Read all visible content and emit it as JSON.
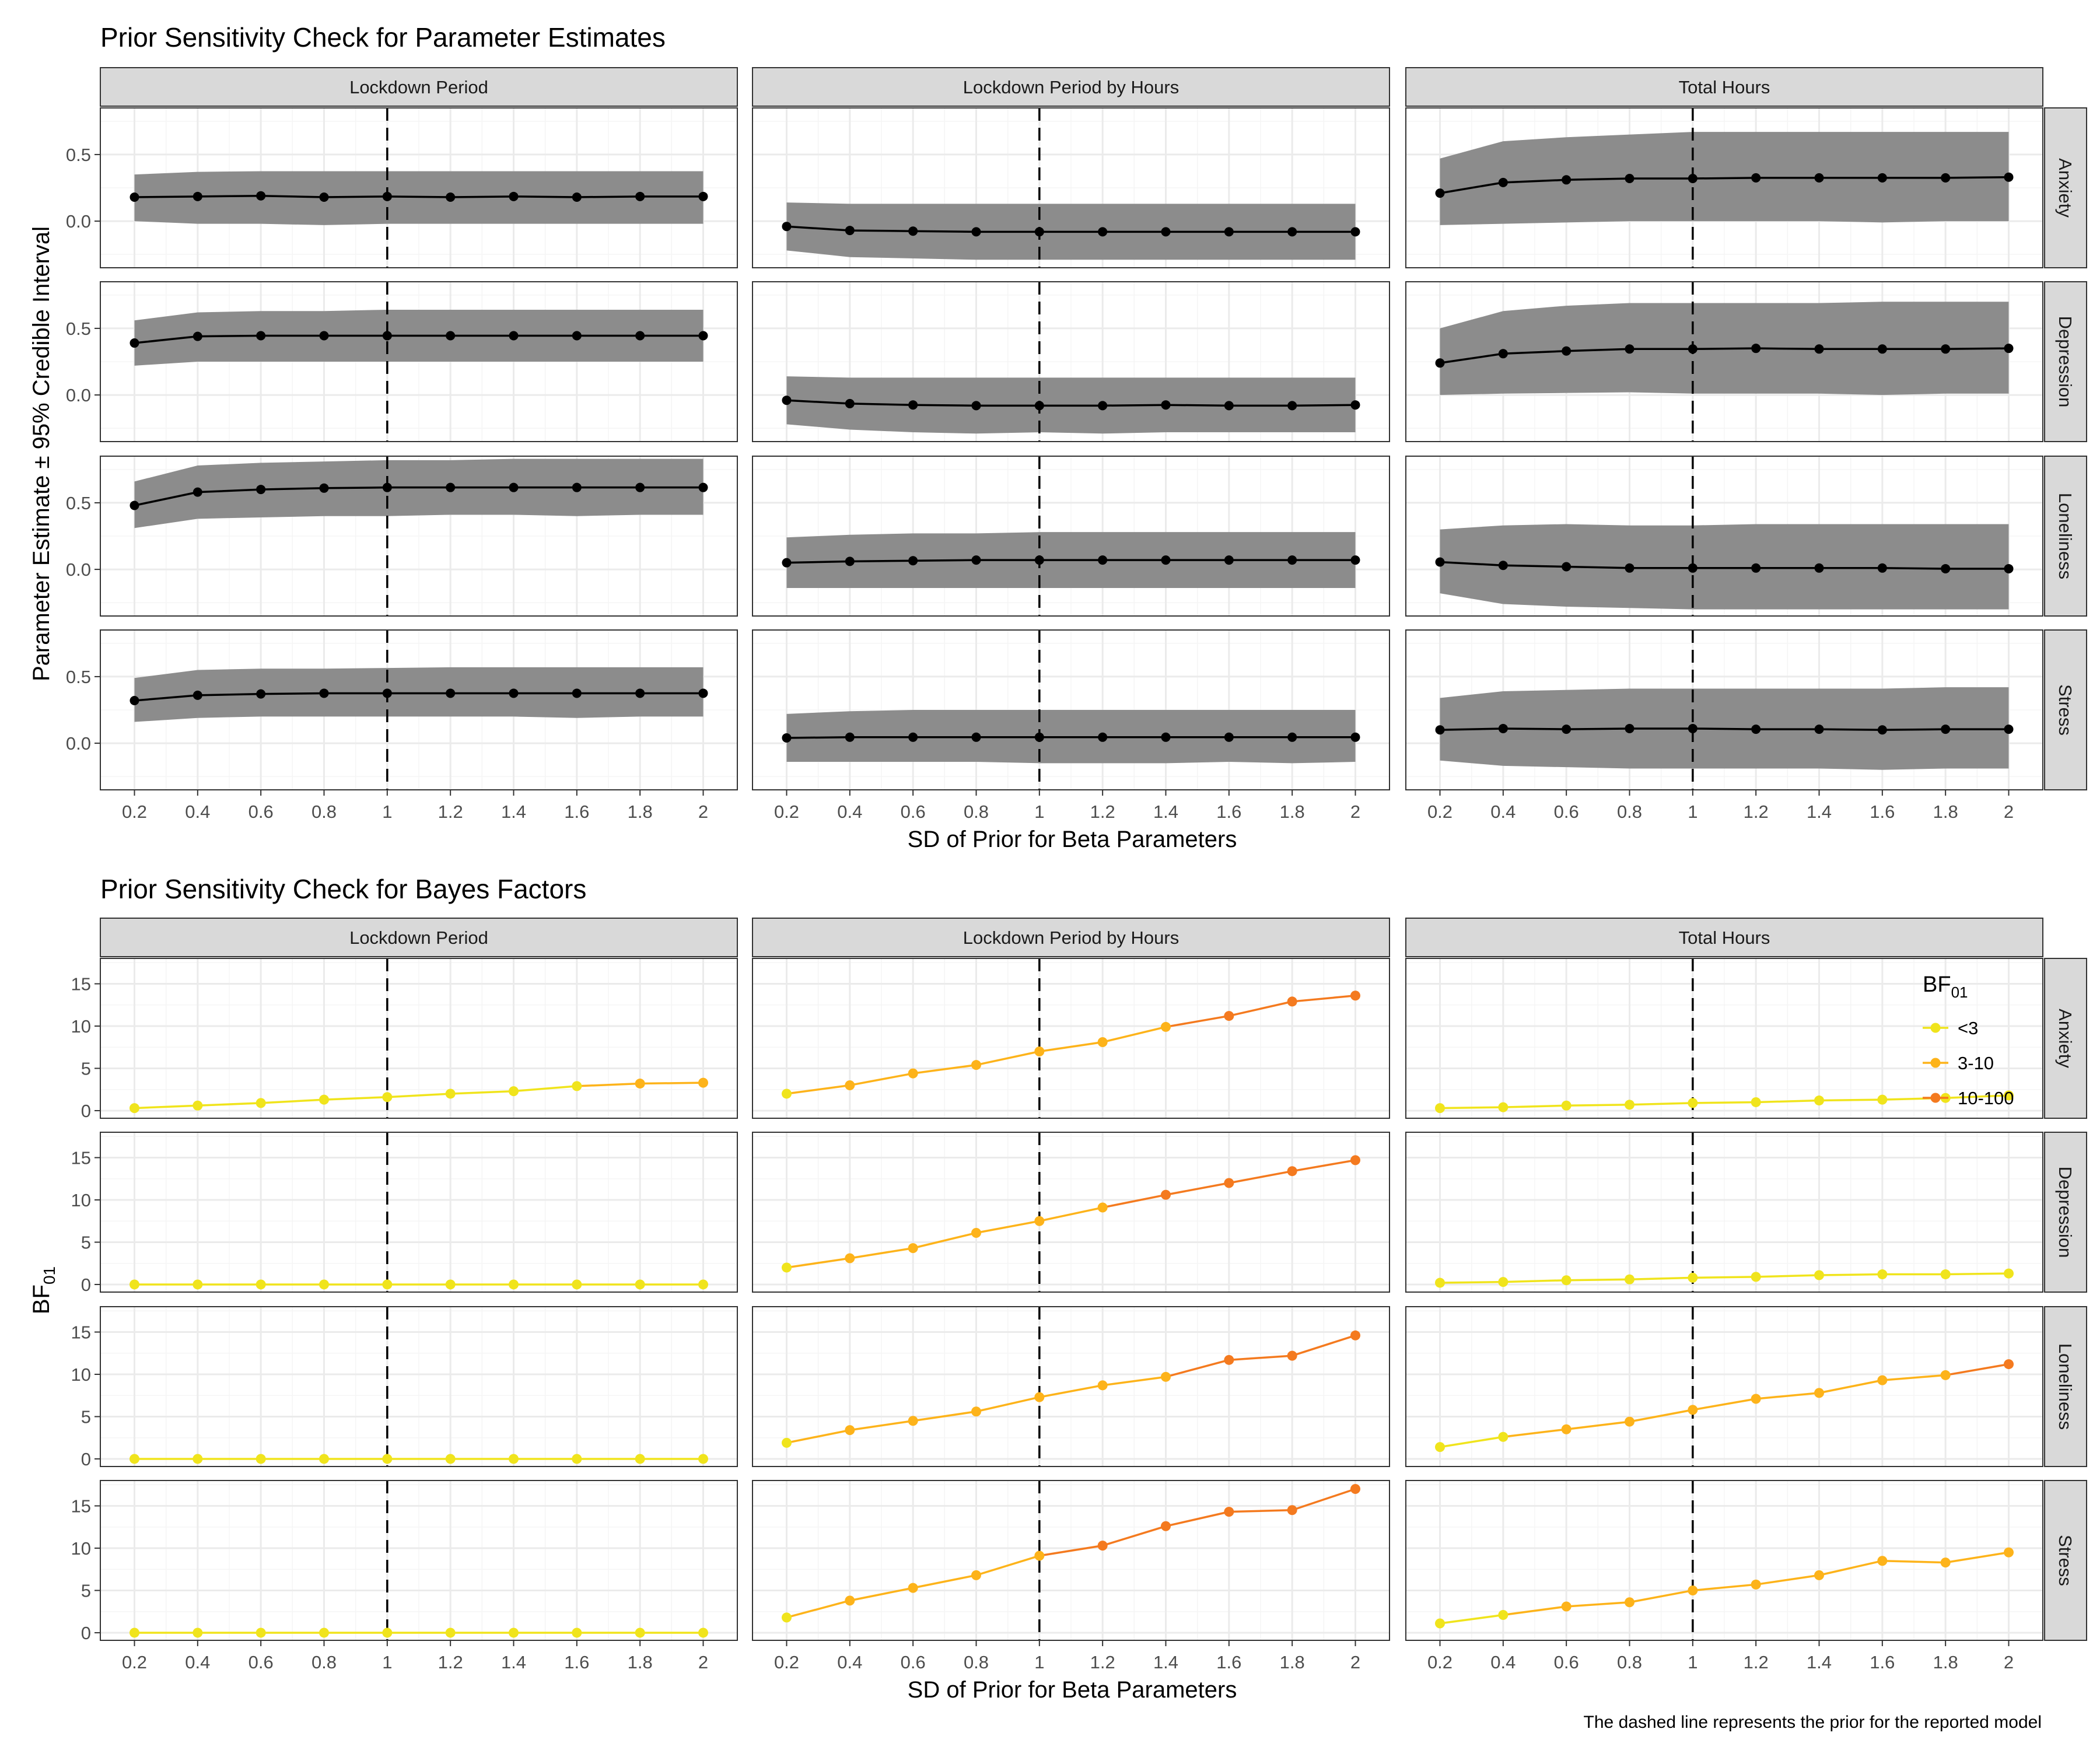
{
  "colors": {
    "panel_border": "#333333",
    "strip_fill": "#d9d9d9",
    "grid_major": "#ebebeb",
    "grid_minor": "#f5f5f5",
    "ribbon": "#8c8c8c",
    "line_points": "#000000",
    "bf_lt3": "#f0e41c",
    "bf_3_10": "#fdb31a",
    "bf_10_100": "#f47a1f"
  },
  "caption": "The dashed line represents the prior for the reported model",
  "chart_data": [
    {
      "type": "line",
      "title": "Prior Sensitivity Check for Parameter Estimates",
      "xlabel": "SD of Prior for Beta Parameters",
      "ylabel": "Parameter Estimate ± 95% Credible Interval",
      "x": [
        0.2,
        0.4,
        0.6,
        0.8,
        1,
        1.2,
        1.4,
        1.6,
        1.8,
        2
      ],
      "x_tick_labels": [
        "0.2",
        "0.4",
        "0.6",
        "0.8",
        "1",
        "1.2",
        "1.4",
        "1.6",
        "1.8",
        "2"
      ],
      "ylim": [
        -0.35,
        0.85
      ],
      "y_ticks": [
        0.0,
        0.5
      ],
      "y_tick_labels": [
        "0.0",
        "0.5"
      ],
      "reference_x": 1,
      "grid": true,
      "columns": [
        "Lockdown Period",
        "Lockdown Period by Hours",
        "Total Hours"
      ],
      "rows": [
        "Anxiety",
        "Depression",
        "Loneliness",
        "Stress"
      ],
      "panels": [
        [
          {
            "est": [
              0.18,
              0.185,
              0.19,
              0.18,
              0.185,
              0.18,
              0.185,
              0.18,
              0.185,
              0.185
            ],
            "lower": [
              0.0,
              -0.02,
              -0.02,
              -0.03,
              -0.02,
              -0.02,
              -0.02,
              -0.02,
              -0.02,
              -0.02
            ],
            "upper": [
              0.35,
              0.37,
              0.375,
              0.375,
              0.375,
              0.375,
              0.375,
              0.375,
              0.375,
              0.375
            ]
          },
          {
            "est": [
              -0.04,
              -0.07,
              -0.075,
              -0.08,
              -0.08,
              -0.08,
              -0.08,
              -0.08,
              -0.08,
              -0.08
            ],
            "lower": [
              -0.22,
              -0.27,
              -0.28,
              -0.29,
              -0.29,
              -0.29,
              -0.29,
              -0.29,
              -0.29,
              -0.29
            ],
            "upper": [
              0.14,
              0.13,
              0.13,
              0.13,
              0.13,
              0.13,
              0.13,
              0.13,
              0.13,
              0.13
            ]
          },
          {
            "est": [
              0.21,
              0.29,
              0.31,
              0.32,
              0.32,
              0.325,
              0.325,
              0.325,
              0.325,
              0.33
            ],
            "lower": [
              -0.03,
              -0.02,
              -0.01,
              0.0,
              0.0,
              0.0,
              0.0,
              -0.01,
              0.0,
              0.0
            ],
            "upper": [
              0.47,
              0.6,
              0.63,
              0.65,
              0.67,
              0.67,
              0.67,
              0.67,
              0.67,
              0.67
            ]
          }
        ],
        [
          {
            "est": [
              0.39,
              0.44,
              0.445,
              0.445,
              0.445,
              0.445,
              0.445,
              0.445,
              0.445,
              0.445
            ],
            "lower": [
              0.22,
              0.25,
              0.25,
              0.25,
              0.25,
              0.25,
              0.25,
              0.25,
              0.25,
              0.25
            ],
            "upper": [
              0.56,
              0.62,
              0.63,
              0.63,
              0.64,
              0.64,
              0.64,
              0.64,
              0.64,
              0.64
            ]
          },
          {
            "est": [
              -0.04,
              -0.065,
              -0.075,
              -0.08,
              -0.08,
              -0.08,
              -0.075,
              -0.08,
              -0.08,
              -0.075
            ],
            "lower": [
              -0.22,
              -0.26,
              -0.28,
              -0.29,
              -0.28,
              -0.29,
              -0.28,
              -0.28,
              -0.28,
              -0.28
            ],
            "upper": [
              0.14,
              0.13,
              0.13,
              0.13,
              0.13,
              0.13,
              0.13,
              0.13,
              0.13,
              0.13
            ]
          },
          {
            "est": [
              0.24,
              0.31,
              0.33,
              0.345,
              0.345,
              0.35,
              0.345,
              0.345,
              0.345,
              0.35
            ],
            "lower": [
              0.0,
              0.01,
              0.015,
              0.02,
              0.01,
              0.01,
              0.01,
              0.0,
              0.01,
              0.01
            ],
            "upper": [
              0.5,
              0.63,
              0.67,
              0.69,
              0.69,
              0.69,
              0.69,
              0.7,
              0.7,
              0.7
            ]
          }
        ],
        [
          {
            "est": [
              0.48,
              0.58,
              0.6,
              0.61,
              0.615,
              0.615,
              0.615,
              0.615,
              0.615,
              0.615
            ],
            "lower": [
              0.31,
              0.38,
              0.39,
              0.4,
              0.4,
              0.41,
              0.41,
              0.4,
              0.41,
              0.41
            ],
            "upper": [
              0.66,
              0.78,
              0.8,
              0.81,
              0.82,
              0.82,
              0.83,
              0.83,
              0.83,
              0.83
            ]
          },
          {
            "est": [
              0.05,
              0.06,
              0.065,
              0.07,
              0.07,
              0.07,
              0.07,
              0.07,
              0.07,
              0.07
            ],
            "lower": [
              -0.14,
              -0.14,
              -0.14,
              -0.14,
              -0.14,
              -0.14,
              -0.14,
              -0.14,
              -0.14,
              -0.14
            ],
            "upper": [
              0.24,
              0.26,
              0.27,
              0.27,
              0.28,
              0.28,
              0.28,
              0.28,
              0.28,
              0.28
            ]
          },
          {
            "est": [
              0.055,
              0.03,
              0.02,
              0.01,
              0.01,
              0.01,
              0.01,
              0.01,
              0.005,
              0.005
            ],
            "lower": [
              -0.18,
              -0.26,
              -0.28,
              -0.29,
              -0.3,
              -0.3,
              -0.3,
              -0.3,
              -0.3,
              -0.3
            ],
            "upper": [
              0.3,
              0.33,
              0.34,
              0.33,
              0.33,
              0.34,
              0.34,
              0.34,
              0.34,
              0.34
            ]
          }
        ],
        [
          {
            "est": [
              0.32,
              0.36,
              0.37,
              0.375,
              0.375,
              0.375,
              0.375,
              0.375,
              0.375,
              0.375
            ],
            "lower": [
              0.16,
              0.19,
              0.2,
              0.2,
              0.2,
              0.2,
              0.2,
              0.19,
              0.2,
              0.2
            ],
            "upper": [
              0.49,
              0.55,
              0.56,
              0.56,
              0.565,
              0.57,
              0.57,
              0.57,
              0.57,
              0.57
            ]
          },
          {
            "est": [
              0.04,
              0.045,
              0.045,
              0.045,
              0.045,
              0.045,
              0.045,
              0.045,
              0.045,
              0.045
            ],
            "lower": [
              -0.14,
              -0.14,
              -0.14,
              -0.14,
              -0.15,
              -0.15,
              -0.15,
              -0.14,
              -0.15,
              -0.14
            ],
            "upper": [
              0.22,
              0.24,
              0.25,
              0.25,
              0.25,
              0.25,
              0.25,
              0.25,
              0.25,
              0.25
            ]
          },
          {
            "est": [
              0.1,
              0.11,
              0.105,
              0.11,
              0.11,
              0.105,
              0.105,
              0.1,
              0.105,
              0.105
            ],
            "lower": [
              -0.13,
              -0.17,
              -0.18,
              -0.19,
              -0.19,
              -0.19,
              -0.19,
              -0.2,
              -0.19,
              -0.19
            ],
            "upper": [
              0.34,
              0.39,
              0.4,
              0.41,
              0.41,
              0.41,
              0.41,
              0.41,
              0.42,
              0.42
            ]
          }
        ]
      ]
    },
    {
      "type": "line",
      "title": "Prior Sensitivity Check for Bayes Factors",
      "xlabel": "SD of Prior for Beta Parameters",
      "ylabel": "BF",
      "ylabel_subscript": "01",
      "x": [
        0.2,
        0.4,
        0.6,
        0.8,
        1,
        1.2,
        1.4,
        1.6,
        1.8,
        2
      ],
      "x_tick_labels": [
        "0.2",
        "0.4",
        "0.6",
        "0.8",
        "1",
        "1.2",
        "1.4",
        "1.6",
        "1.8",
        "2"
      ],
      "ylim": [
        -0.9,
        18.0
      ],
      "y_ticks": [
        0,
        5,
        10,
        15
      ],
      "y_tick_labels": [
        "0",
        "5",
        "10",
        "15"
      ],
      "reference_x": 1,
      "grid": true,
      "columns": [
        "Lockdown Period",
        "Lockdown Period by Hours",
        "Total Hours"
      ],
      "rows": [
        "Anxiety",
        "Depression",
        "Loneliness",
        "Stress"
      ],
      "legend": {
        "title": "BF",
        "title_subscript": "01",
        "placement": "top-right",
        "entries": [
          "<3",
          "3-10",
          "10-100"
        ]
      },
      "panels": [
        [
          {
            "values": [
              0.3,
              0.6,
              0.9,
              1.3,
              1.6,
              2.0,
              2.3,
              2.9,
              3.2,
              3.3
            ]
          },
          {
            "values": [
              2.0,
              3.0,
              4.4,
              5.4,
              7.0,
              8.1,
              9.9,
              11.2,
              12.9,
              13.6
            ]
          },
          {
            "values": [
              0.3,
              0.4,
              0.6,
              0.7,
              0.9,
              1.0,
              1.2,
              1.3,
              1.5,
              1.8
            ]
          }
        ],
        [
          {
            "values": [
              0.0,
              0.0,
              0.0,
              0.0,
              0.0,
              0.0,
              0.0,
              0.0,
              0.0,
              0.0
            ]
          },
          {
            "values": [
              2.0,
              3.1,
              4.3,
              6.1,
              7.5,
              9.1,
              10.6,
              12.0,
              13.4,
              14.7
            ]
          },
          {
            "values": [
              0.2,
              0.3,
              0.5,
              0.6,
              0.8,
              0.9,
              1.1,
              1.2,
              1.2,
              1.3
            ]
          }
        ],
        [
          {
            "values": [
              0.0,
              0.0,
              0.0,
              0.0,
              0.0,
              0.0,
              0.0,
              0.0,
              0.0,
              0.0
            ]
          },
          {
            "values": [
              1.9,
              3.4,
              4.5,
              5.6,
              7.3,
              8.7,
              9.7,
              11.7,
              12.2,
              14.6
            ]
          },
          {
            "values": [
              1.4,
              2.6,
              3.5,
              4.4,
              5.8,
              7.1,
              7.8,
              9.3,
              9.9,
              11.2
            ]
          }
        ],
        [
          {
            "values": [
              0.0,
              0.0,
              0.0,
              0.0,
              0.0,
              0.0,
              0.0,
              0.0,
              0.0,
              0.0
            ]
          },
          {
            "values": [
              1.8,
              3.8,
              5.3,
              6.8,
              9.1,
              10.3,
              12.6,
              14.3,
              14.5,
              17.0
            ]
          },
          {
            "values": [
              1.1,
              2.1,
              3.1,
              3.6,
              5.0,
              5.7,
              6.8,
              8.5,
              8.3,
              9.5
            ]
          }
        ]
      ]
    }
  ]
}
